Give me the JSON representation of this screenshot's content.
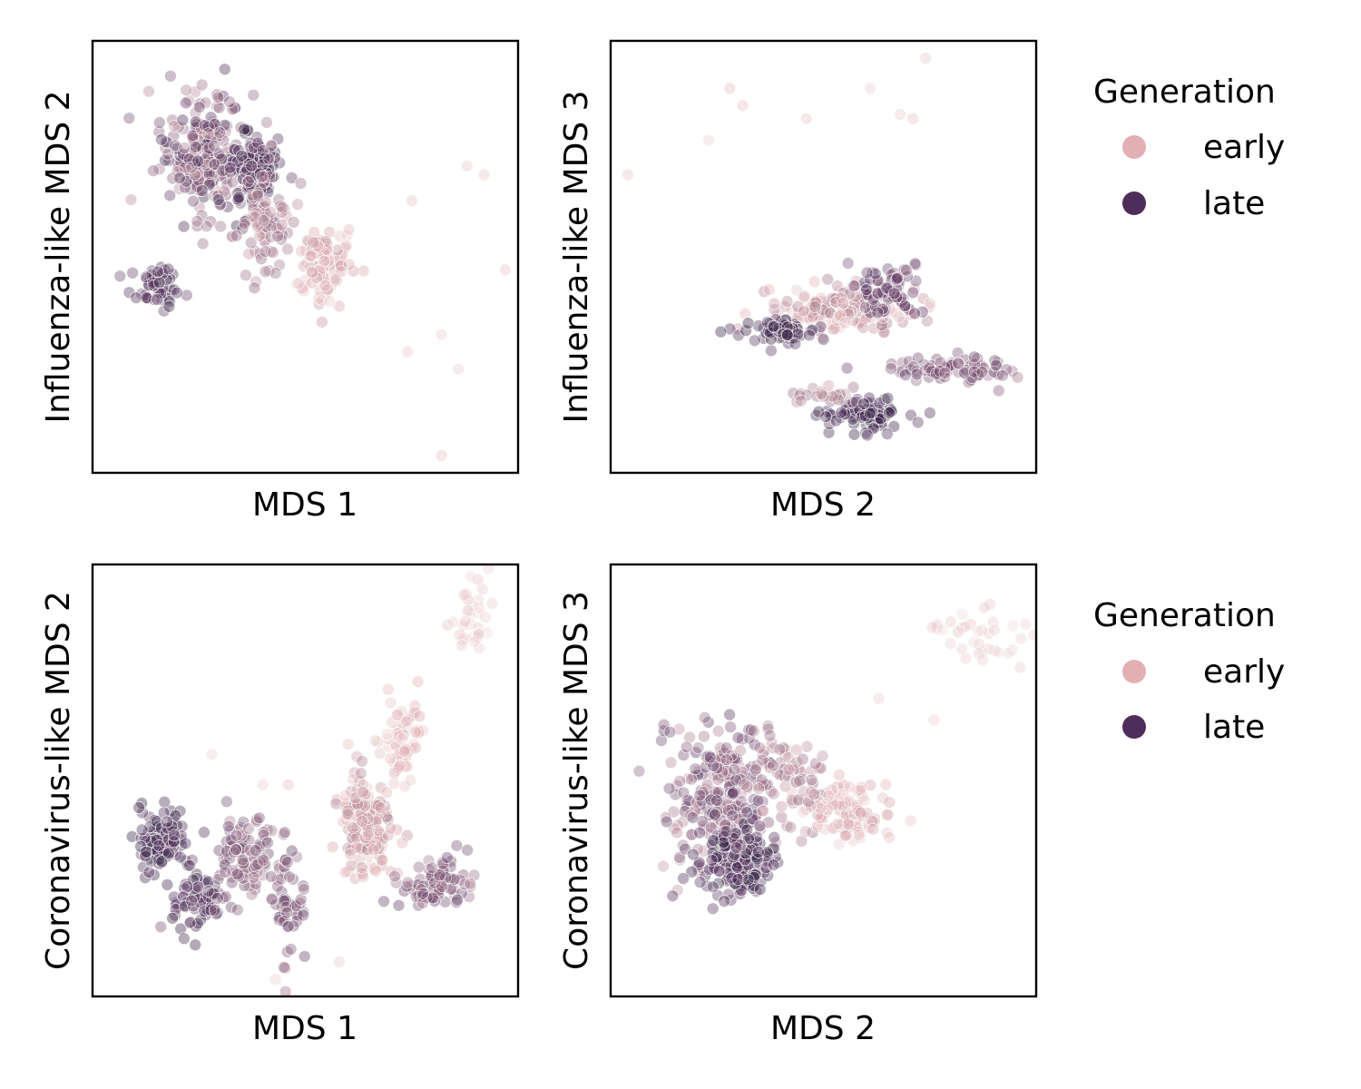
{
  "colors": {
    "early": "#e2b0b3",
    "late": "#4f2d5a"
  },
  "legend": {
    "title": "Generation",
    "items": [
      {
        "label": "early",
        "color": "#e2b0b3"
      },
      {
        "label": "late",
        "color": "#4f2d5a"
      }
    ]
  },
  "chart_data": [
    {
      "type": "scatter",
      "title": "",
      "xlabel": "MDS 1",
      "ylabel": "Influenza-like MDS 2",
      "xlim": [
        0,
        10
      ],
      "ylim": [
        0,
        10
      ],
      "ticks": "none",
      "grid": false,
      "color_scale": "generation, early (light pink) to late (dark purple)",
      "clusters": [
        {
          "center": [
            2.6,
            7.4
          ],
          "spread": [
            1.0,
            1.4
          ],
          "n": 220,
          "gen": [
            0.35,
            0.95
          ]
        },
        {
          "center": [
            3.7,
            7.0
          ],
          "spread": [
            0.6,
            0.9
          ],
          "n": 120,
          "gen": [
            0.7,
            1.0
          ]
        },
        {
          "center": [
            1.5,
            4.3
          ],
          "spread": [
            0.6,
            0.5
          ],
          "n": 50,
          "gen": [
            0.7,
            1.0
          ]
        },
        {
          "center": [
            4.0,
            5.9
          ],
          "spread": [
            0.7,
            1.4
          ],
          "n": 80,
          "gen": [
            0.3,
            0.6
          ]
        },
        {
          "center": [
            5.4,
            4.8
          ],
          "spread": [
            0.7,
            0.9
          ],
          "n": 90,
          "gen": [
            0.05,
            0.35
          ]
        }
      ],
      "outliers": [
        {
          "x": 8.8,
          "y": 7.1
        },
        {
          "x": 9.2,
          "y": 6.9
        },
        {
          "x": 7.5,
          "y": 6.3
        },
        {
          "x": 9.7,
          "y": 4.7
        },
        {
          "x": 7.4,
          "y": 2.8
        },
        {
          "x": 8.2,
          "y": 3.2
        },
        {
          "x": 8.6,
          "y": 2.4
        },
        {
          "x": 8.2,
          "y": 0.4
        }
      ]
    },
    {
      "type": "scatter",
      "title": "",
      "xlabel": "MDS 2",
      "ylabel": "Influenza-like MDS 3",
      "xlim": [
        0,
        10
      ],
      "ylim": [
        0,
        10
      ],
      "ticks": "none",
      "grid": false,
      "clusters": [
        {
          "center": [
            5.5,
            3.8
          ],
          "spread": [
            1.7,
            0.6
          ],
          "n": 160,
          "gen": [
            0.1,
            0.5
          ]
        },
        {
          "center": [
            6.5,
            4.2
          ],
          "spread": [
            0.8,
            0.6
          ],
          "n": 70,
          "gen": [
            0.6,
            0.9
          ]
        },
        {
          "center": [
            4.0,
            3.3
          ],
          "spread": [
            1.0,
            0.3
          ],
          "n": 60,
          "gen": [
            0.8,
            1.0
          ]
        },
        {
          "center": [
            8.0,
            2.4
          ],
          "spread": [
            1.3,
            0.3
          ],
          "n": 80,
          "gen": [
            0.5,
            0.8
          ]
        },
        {
          "center": [
            6.0,
            1.4
          ],
          "spread": [
            0.9,
            0.4
          ],
          "n": 90,
          "gen": [
            0.8,
            1.0
          ]
        },
        {
          "center": [
            5.0,
            1.8
          ],
          "spread": [
            0.9,
            0.2
          ],
          "n": 20,
          "gen": [
            0.3,
            0.55
          ]
        }
      ],
      "outliers": [
        {
          "x": 7.4,
          "y": 9.6
        },
        {
          "x": 6.1,
          "y": 8.9
        },
        {
          "x": 2.8,
          "y": 8.9
        },
        {
          "x": 3.1,
          "y": 8.5
        },
        {
          "x": 4.6,
          "y": 8.2
        },
        {
          "x": 6.8,
          "y": 8.3
        },
        {
          "x": 7.1,
          "y": 8.2
        },
        {
          "x": 2.3,
          "y": 7.7
        },
        {
          "x": 0.4,
          "y": 6.9
        }
      ]
    },
    {
      "type": "scatter",
      "title": "",
      "xlabel": "MDS 1",
      "ylabel": "Coronavirus-like MDS 2",
      "xlim": [
        0,
        10
      ],
      "ylim": [
        0,
        10
      ],
      "ticks": "none",
      "grid": false,
      "clusters": [
        {
          "center": [
            1.6,
            3.6
          ],
          "spread": [
            0.6,
            0.7
          ],
          "n": 90,
          "gen": [
            0.8,
            1.0
          ]
        },
        {
          "center": [
            2.4,
            2.2
          ],
          "spread": [
            0.6,
            1.0
          ],
          "n": 70,
          "gen": [
            0.7,
            1.0
          ]
        },
        {
          "center": [
            3.6,
            3.2
          ],
          "spread": [
            0.9,
            1.0
          ],
          "n": 100,
          "gen": [
            0.45,
            0.75
          ]
        },
        {
          "center": [
            4.6,
            2.1
          ],
          "spread": [
            0.4,
            1.2
          ],
          "n": 50,
          "gen": [
            0.5,
            0.8
          ]
        },
        {
          "center": [
            6.4,
            4.0
          ],
          "spread": [
            0.7,
            1.3
          ],
          "n": 150,
          "gen": [
            0.1,
            0.45
          ]
        },
        {
          "center": [
            7.3,
            5.8
          ],
          "spread": [
            0.5,
            1.2
          ],
          "n": 60,
          "gen": [
            0.05,
            0.25
          ]
        },
        {
          "center": [
            8.1,
            2.6
          ],
          "spread": [
            0.9,
            0.6
          ],
          "n": 80,
          "gen": [
            0.45,
            0.8
          ]
        },
        {
          "center": [
            8.9,
            8.6
          ],
          "spread": [
            0.4,
            0.9
          ],
          "n": 35,
          "gen": [
            0.0,
            0.12
          ]
        }
      ],
      "outliers": [
        {
          "x": 2.8,
          "y": 5.6
        },
        {
          "x": 4.0,
          "y": 4.9
        },
        {
          "x": 4.6,
          "y": 4.9
        },
        {
          "x": 5.8,
          "y": 0.8
        },
        {
          "x": 4.3,
          "y": 0.4
        }
      ]
    },
    {
      "type": "scatter",
      "title": "",
      "xlabel": "MDS 2",
      "ylabel": "Coronavirus-like MDS 3",
      "xlim": [
        0,
        10
      ],
      "ylim": [
        0,
        10
      ],
      "ticks": "none",
      "grid": false,
      "clusters": [
        {
          "center": [
            2.6,
            4.6
          ],
          "spread": [
            1.3,
            1.6
          ],
          "n": 240,
          "gen": [
            0.35,
            0.85
          ]
        },
        {
          "center": [
            3.0,
            3.1
          ],
          "spread": [
            1.0,
            0.9
          ],
          "n": 150,
          "gen": [
            0.75,
            1.0
          ]
        },
        {
          "center": [
            5.5,
            4.3
          ],
          "spread": [
            1.2,
            0.8
          ],
          "n": 100,
          "gen": [
            0.05,
            0.3
          ]
        },
        {
          "center": [
            4.2,
            5.2
          ],
          "spread": [
            0.9,
            0.9
          ],
          "n": 60,
          "gen": [
            0.3,
            0.55
          ]
        },
        {
          "center": [
            8.5,
            8.4
          ],
          "spread": [
            1.1,
            0.7
          ],
          "n": 35,
          "gen": [
            0.0,
            0.12
          ]
        }
      ],
      "outliers": [
        {
          "x": 6.3,
          "y": 6.9
        },
        {
          "x": 7.6,
          "y": 6.4
        }
      ]
    }
  ]
}
